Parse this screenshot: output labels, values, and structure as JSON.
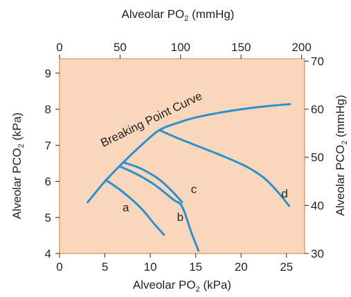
{
  "chart_data": {
    "type": "line",
    "axes": {
      "bottom": {
        "title_main": "Alveolar PO",
        "title_sub": "2",
        "title_unit": " (kPa)",
        "range": [
          0,
          27
        ],
        "ticks": [
          0,
          5,
          10,
          15,
          20,
          25
        ]
      },
      "top": {
        "title_main": "Alveolar PO",
        "title_sub": "2",
        "title_unit": " (mmHg)",
        "range": [
          0,
          202.5
        ],
        "ticks": [
          0,
          50,
          100,
          150,
          200
        ]
      },
      "left": {
        "title_main": "Alveolar PCO",
        "title_sub": "2",
        "title_unit": " (kPa)",
        "range": [
          4,
          9.4
        ],
        "ticks": [
          4,
          5,
          6,
          7,
          8,
          9
        ]
      },
      "right": {
        "title_main": "Alveolar PCO",
        "title_sub": "2",
        "title_unit": " (mmHg)",
        "range": [
          30,
          70.5
        ],
        "ticks": [
          30,
          40,
          50,
          60,
          70
        ]
      }
    },
    "colors": {
      "plot_background": "#f9d7bd",
      "frame": "#e8894a",
      "curve": "#2a8fcf"
    },
    "series": [
      {
        "name": "Breaking Point Curve",
        "points": [
          [
            3.1,
            5.42
          ],
          [
            5.0,
            6.0
          ],
          [
            7.0,
            6.52
          ],
          [
            9.0,
            7.0
          ],
          [
            11.0,
            7.42
          ],
          [
            13.0,
            7.62
          ],
          [
            15.0,
            7.77
          ],
          [
            18.0,
            7.92
          ],
          [
            21.0,
            8.03
          ],
          [
            23.5,
            8.1
          ],
          [
            25.4,
            8.14
          ]
        ]
      },
      {
        "name": "a",
        "points": [
          [
            5.1,
            6.04
          ],
          [
            7.0,
            5.7
          ],
          [
            9.0,
            5.25
          ],
          [
            10.5,
            4.8
          ],
          [
            11.5,
            4.52
          ]
        ]
      },
      {
        "name": "b",
        "points": [
          [
            6.6,
            6.42
          ],
          [
            8.5,
            6.2
          ],
          [
            10.5,
            5.9
          ],
          [
            12.5,
            5.5
          ],
          [
            13.5,
            5.3
          ],
          [
            14.5,
            4.6
          ],
          [
            15.3,
            4.08
          ]
        ]
      },
      {
        "name": "c",
        "points": [
          [
            7.0,
            6.53
          ],
          [
            9.0,
            6.35
          ],
          [
            11.0,
            6.05
          ],
          [
            12.5,
            5.7
          ],
          [
            13.5,
            5.42
          ]
        ]
      },
      {
        "name": "d",
        "points": [
          [
            11.0,
            7.42
          ],
          [
            13.0,
            7.2
          ],
          [
            15.5,
            6.95
          ],
          [
            18.0,
            6.7
          ],
          [
            20.5,
            6.42
          ],
          [
            22.5,
            6.1
          ],
          [
            24.0,
            5.72
          ],
          [
            25.3,
            5.32
          ]
        ]
      }
    ],
    "labels": [
      {
        "text": "Breaking Point Curve",
        "x": 10.3,
        "y": 7.62
      },
      {
        "text": "a",
        "x": 7.3,
        "y": 5.17
      },
      {
        "text": "b",
        "x": 13.3,
        "y": 4.9
      },
      {
        "text": "c",
        "x": 14.8,
        "y": 5.68
      },
      {
        "text": "d",
        "x": 24.8,
        "y": 5.55
      }
    ]
  }
}
